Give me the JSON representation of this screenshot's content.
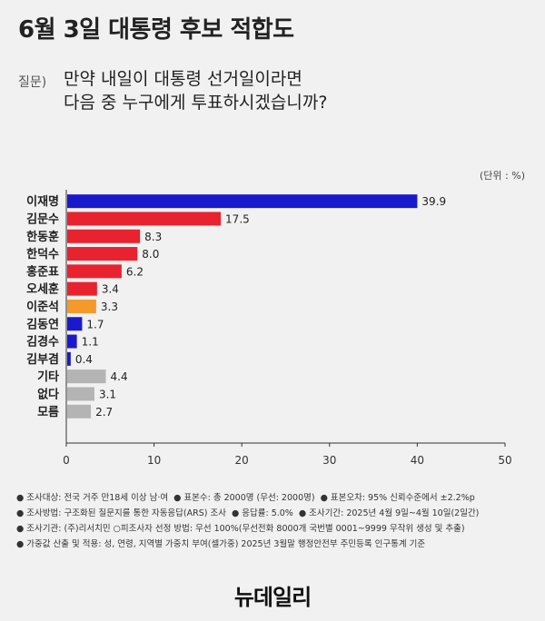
{
  "title": "6월 3일 대통령 후보 적합도",
  "question_tag": "질문)",
  "question_line1": "만약 내일이 대통령 선거일이라면",
  "question_line2": "다음 중 누구에게 투표하시겠습니까?",
  "unit": "(단위 : %)",
  "chart_data": {
    "type": "bar",
    "orientation": "horizontal",
    "categories": [
      "이재명",
      "김문수",
      "한동훈",
      "한덕수",
      "홍준표",
      "오세훈",
      "이준석",
      "김동연",
      "김경수",
      "김부겸",
      "기타",
      "없다",
      "모름"
    ],
    "values": [
      39.9,
      17.5,
      8.3,
      8.0,
      6.2,
      3.4,
      3.3,
      1.7,
      1.1,
      0.4,
      4.4,
      3.1,
      2.7
    ],
    "value_labels": [
      "39.9",
      "17.5",
      "8.3",
      "8.0",
      "6.2",
      "3.4",
      "3.3",
      "1.7",
      "1.1",
      "0.4",
      "4.4",
      "3.1",
      "2.7"
    ],
    "bar_colors": [
      "#1a1acc",
      "#e8222e",
      "#e8222e",
      "#e8222e",
      "#e8222e",
      "#e8222e",
      "#f39a2b",
      "#1a1acc",
      "#1a1acc",
      "#1a1acc",
      "#b4b4b4",
      "#b4b4b4",
      "#b4b4b4"
    ],
    "xlim": [
      0,
      50
    ],
    "xticks": [
      0,
      10,
      20,
      30,
      40,
      50
    ],
    "grid": false
  },
  "notes": [
    [
      "조사대상: 전국 거주 만18세 이상 남·여",
      "표본수: 총 2000명 (무선: 2000명)",
      "표본오차: 95% 신뢰수준에서 ±2.2%p"
    ],
    [
      "조사방법: 구조화된 질문지를 통한 자동응답(ARS) 조사",
      "응답률: 5.0%",
      "조사기간: 2025년 4월 9일~4월 10일(2일간)"
    ],
    [
      "조사기관: (주)리서치민 ○피조사자 선정 방법: 무선 100%(무선전화 8000개 국번별 0001~9999 무작위 생성 및 추출)"
    ],
    [
      "가중값 산출 및 적용: 성, 연령, 지역별 가중치 부여(셀가중) 2025년 3월말 행정안전부 주민등록 인구통계 기준"
    ]
  ],
  "logo": "뉴데일리"
}
